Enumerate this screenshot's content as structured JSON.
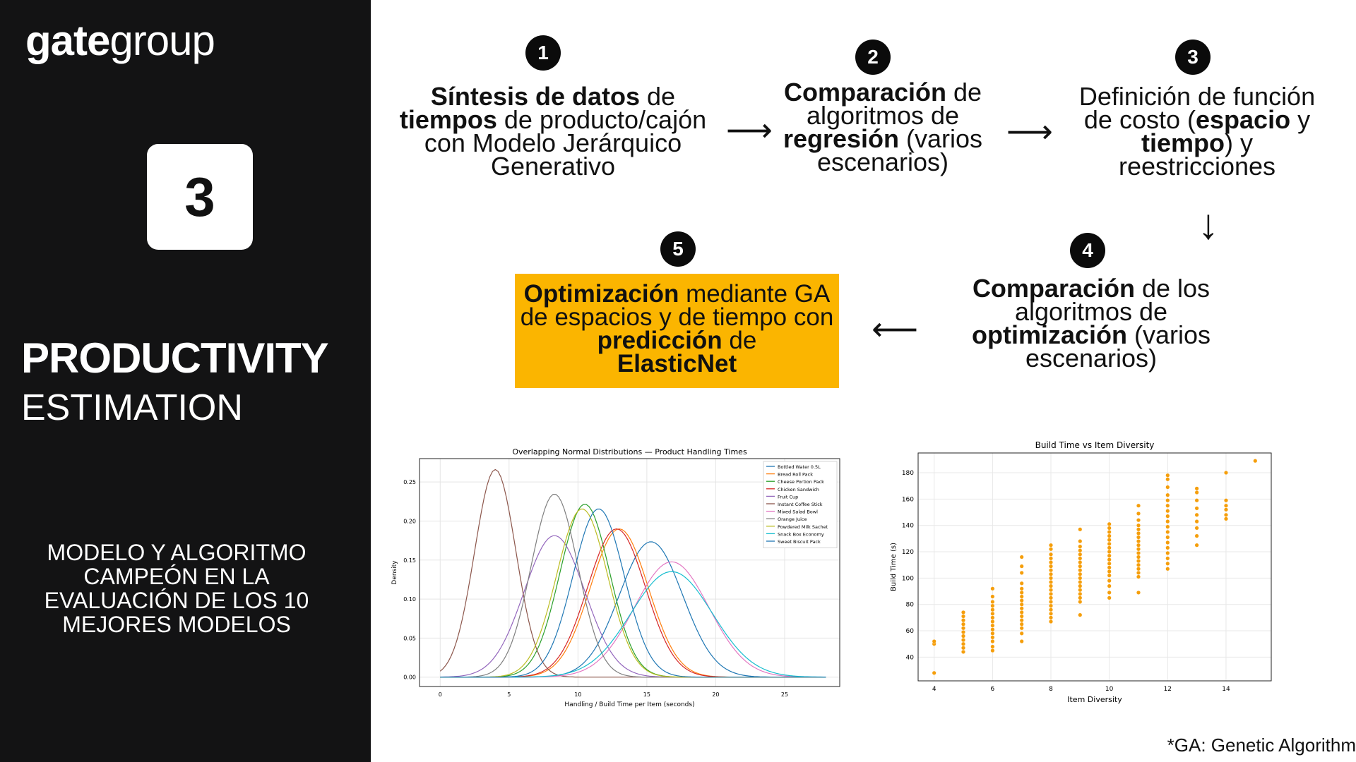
{
  "brand": {
    "logo_bold": "gate",
    "logo_light": "group"
  },
  "left_panel": {
    "badge": "3",
    "title": "PRODUCTIVITY",
    "subtitle": "ESTIMATION",
    "description": "MODELO Y ALGORITMO CAMPEÓN EN LA EVALUACIÓN DE LOS 10 MEJORES MODELOS"
  },
  "steps": [
    {
      "num": "1",
      "bold1": "Síntesis de datos",
      "t1": " de ",
      "bold2": "tiempos",
      "t2": " de producto/cajón con Modelo Jerárquico Generativo"
    },
    {
      "num": "2",
      "bold1": "Comparación",
      "t1": " de algoritmos de ",
      "bold2": "regresión",
      "t2": " (varios escenarios)"
    },
    {
      "num": "3",
      "t0": "Definición de función de costo (",
      "bold1": "espacio",
      "t1": " y ",
      "bold2": "tiempo",
      "t2": ") y reestricciones"
    },
    {
      "num": "4",
      "bold1": "Comparación",
      "t1": " de los algoritmos de ",
      "bold2": "optimización",
      "t2": " (varios escenarios)"
    },
    {
      "num": "5",
      "bold1": "Optimización",
      "t1": " mediante GA de espacios y  de tiempo con ",
      "bold2": "predicción",
      "t2": " de ",
      "bold3": "ElasticNet"
    }
  ],
  "arrows": {
    "right": "⟶",
    "down": "↓",
    "left": "⟵"
  },
  "footnote": "*GA: Genetic Algorithm",
  "colors": {
    "panel": "#131314",
    "highlight": "#FBB500",
    "scatter": "#F59E0B"
  },
  "chart_data": [
    {
      "type": "line",
      "title": "Overlapping Normal Distributions — Product Handling Times",
      "xlabel": "Handling / Build Time per Item (seconds)",
      "ylabel": "Density",
      "xlim": [
        -1.5,
        29
      ],
      "ylim": [
        -0.012,
        0.28
      ],
      "xticks": [
        0,
        5,
        10,
        15,
        20,
        25
      ],
      "yticks": [
        0.0,
        0.05,
        0.1,
        0.15,
        0.2,
        0.25
      ],
      "grid": true,
      "legend": "top-right",
      "series": [
        {
          "name": "Bottled Water 0.5L",
          "mean": 15.3,
          "sd": 2.3,
          "color": "#1f77b4"
        },
        {
          "name": "Bread Roll Pack",
          "mean": 13.0,
          "sd": 2.1,
          "color": "#ff7f0e"
        },
        {
          "name": "Cheese Portion Pack",
          "mean": 10.5,
          "sd": 1.8,
          "color": "#2ca02c"
        },
        {
          "name": "Chicken Sandwich",
          "mean": 12.8,
          "sd": 2.1,
          "color": "#d62728"
        },
        {
          "name": "Fruit Cup",
          "mean": 8.3,
          "sd": 2.2,
          "color": "#9467bd"
        },
        {
          "name": "Instant Coffee Stick",
          "mean": 4.0,
          "sd": 1.5,
          "color": "#8c564b"
        },
        {
          "name": "Mixed Salad Bowl",
          "mean": 16.8,
          "sd": 2.7,
          "color": "#e377c2"
        },
        {
          "name": "Orange Juice",
          "mean": 8.3,
          "sd": 1.7,
          "color": "#7f7f7f"
        },
        {
          "name": "Powdered Milk Sachet",
          "mean": 10.3,
          "sd": 1.85,
          "color": "#bcbd22"
        },
        {
          "name": "Snack Box Economy",
          "mean": 16.8,
          "sd": 2.95,
          "color": "#17becf"
        },
        {
          "name": "Sweet Biscuit Pack",
          "mean": 11.5,
          "sd": 1.85,
          "color": "#1f77b4"
        }
      ]
    },
    {
      "type": "scatter",
      "title": "Build Time vs Item Diversity",
      "xlabel": "Item Diversity",
      "ylabel": "Build Time (s)",
      "xlim": [
        3.45,
        15.55
      ],
      "ylim": [
        22,
        195
      ],
      "xticks": [
        4,
        6,
        8,
        10,
        12,
        14
      ],
      "yticks": [
        40,
        60,
        80,
        100,
        120,
        140,
        160,
        180
      ],
      "grid": true,
      "points": [
        [
          4,
          28
        ],
        [
          4,
          50
        ],
        [
          4,
          52
        ],
        [
          5,
          44
        ],
        [
          5,
          47
        ],
        [
          5,
          50
        ],
        [
          5,
          53
        ],
        [
          5,
          56
        ],
        [
          5,
          59
        ],
        [
          5,
          62
        ],
        [
          5,
          65
        ],
        [
          5,
          68
        ],
        [
          5,
          71
        ],
        [
          5,
          74
        ],
        [
          6,
          45
        ],
        [
          6,
          48
        ],
        [
          6,
          52
        ],
        [
          6,
          55
        ],
        [
          6,
          58
        ],
        [
          6,
          61
        ],
        [
          6,
          64
        ],
        [
          6,
          67
        ],
        [
          6,
          70
        ],
        [
          6,
          73
        ],
        [
          6,
          76
        ],
        [
          6,
          79
        ],
        [
          6,
          82
        ],
        [
          6,
          86
        ],
        [
          6,
          92
        ],
        [
          7,
          52
        ],
        [
          7,
          58
        ],
        [
          7,
          62
        ],
        [
          7,
          65
        ],
        [
          7,
          68
        ],
        [
          7,
          71
        ],
        [
          7,
          74
        ],
        [
          7,
          77
        ],
        [
          7,
          80
        ],
        [
          7,
          83
        ],
        [
          7,
          86
        ],
        [
          7,
          89
        ],
        [
          7,
          92
        ],
        [
          7,
          96
        ],
        [
          7,
          104
        ],
        [
          7,
          109
        ],
        [
          7,
          116
        ],
        [
          8,
          67
        ],
        [
          8,
          70
        ],
        [
          8,
          73
        ],
        [
          8,
          76
        ],
        [
          8,
          79
        ],
        [
          8,
          82
        ],
        [
          8,
          85
        ],
        [
          8,
          88
        ],
        [
          8,
          91
        ],
        [
          8,
          94
        ],
        [
          8,
          97
        ],
        [
          8,
          100
        ],
        [
          8,
          103
        ],
        [
          8,
          106
        ],
        [
          8,
          109
        ],
        [
          8,
          112
        ],
        [
          8,
          115
        ],
        [
          8,
          118
        ],
        [
          8,
          122
        ],
        [
          8,
          125
        ],
        [
          9,
          72
        ],
        [
          9,
          82
        ],
        [
          9,
          85
        ],
        [
          9,
          88
        ],
        [
          9,
          91
        ],
        [
          9,
          94
        ],
        [
          9,
          97
        ],
        [
          9,
          100
        ],
        [
          9,
          103
        ],
        [
          9,
          106
        ],
        [
          9,
          109
        ],
        [
          9,
          112
        ],
        [
          9,
          115
        ],
        [
          9,
          118
        ],
        [
          9,
          121
        ],
        [
          9,
          124
        ],
        [
          9,
          128
        ],
        [
          9,
          137
        ],
        [
          10,
          85
        ],
        [
          10,
          89
        ],
        [
          10,
          94
        ],
        [
          10,
          98
        ],
        [
          10,
          102
        ],
        [
          10,
          105
        ],
        [
          10,
          108
        ],
        [
          10,
          111
        ],
        [
          10,
          114
        ],
        [
          10,
          117
        ],
        [
          10,
          120
        ],
        [
          10,
          123
        ],
        [
          10,
          126
        ],
        [
          10,
          129
        ],
        [
          10,
          132
        ],
        [
          10,
          135
        ],
        [
          10,
          138
        ],
        [
          10,
          141
        ],
        [
          11,
          89
        ],
        [
          11,
          101
        ],
        [
          11,
          104
        ],
        [
          11,
          107
        ],
        [
          11,
          110
        ],
        [
          11,
          113
        ],
        [
          11,
          116
        ],
        [
          11,
          119
        ],
        [
          11,
          122
        ],
        [
          11,
          125
        ],
        [
          11,
          128
        ],
        [
          11,
          131
        ],
        [
          11,
          134
        ],
        [
          11,
          137
        ],
        [
          11,
          140
        ],
        [
          11,
          144
        ],
        [
          11,
          149
        ],
        [
          11,
          155
        ],
        [
          12,
          107
        ],
        [
          12,
          111
        ],
        [
          12,
          115
        ],
        [
          12,
          119
        ],
        [
          12,
          123
        ],
        [
          12,
          127
        ],
        [
          12,
          131
        ],
        [
          12,
          135
        ],
        [
          12,
          139
        ],
        [
          12,
          143
        ],
        [
          12,
          147
        ],
        [
          12,
          151
        ],
        [
          12,
          155
        ],
        [
          12,
          159
        ],
        [
          12,
          163
        ],
        [
          12,
          169
        ],
        [
          12,
          175
        ],
        [
          12,
          178
        ],
        [
          13,
          125
        ],
        [
          13,
          132
        ],
        [
          13,
          138
        ],
        [
          13,
          143
        ],
        [
          13,
          148
        ],
        [
          13,
          153
        ],
        [
          13,
          159
        ],
        [
          13,
          165
        ],
        [
          13,
          168
        ],
        [
          14,
          145
        ],
        [
          14,
          148
        ],
        [
          14,
          152
        ],
        [
          14,
          155
        ],
        [
          14,
          159
        ],
        [
          14,
          180
        ],
        [
          15,
          189
        ]
      ]
    }
  ]
}
